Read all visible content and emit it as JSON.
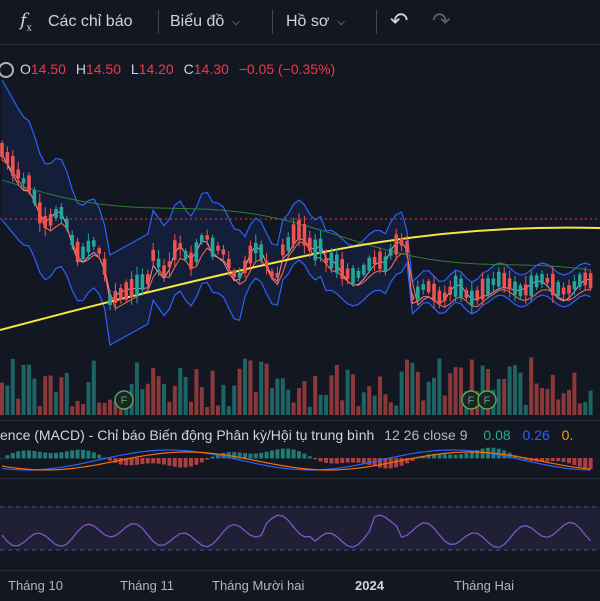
{
  "toolbar": {
    "indicators_label": "Các chỉ báo",
    "chart_label": "Biểu đồ",
    "profile_label": "Hồ sơ",
    "fx_glyph": "f",
    "fx_sub": "x",
    "undo_icon": "↶",
    "redo_icon": "↷",
    "chevron": "⌵"
  },
  "ohlc": {
    "o_label": "O",
    "o_value": "14.50",
    "h_label": "H",
    "h_value": "14.50",
    "l_label": "L",
    "l_value": "14.20",
    "c_label": "C",
    "c_value": "14.30",
    "change": "−0.05 (−0.35%)"
  },
  "macd": {
    "title": "ence (MACD) - Chỉ báo Biến động Phân kỳ/Hội tụ trung bình",
    "params": "12 26 close 9",
    "value1": "0.08",
    "value2": "0.26",
    "value3": "0."
  },
  "events": {
    "label": "F"
  },
  "time_axis": {
    "labels": [
      "Tháng 10",
      "Tháng 11",
      "Tháng Mười hai",
      "2024",
      "Tháng Hai"
    ]
  },
  "colors": {
    "background": "#131722",
    "up": "#26a69a",
    "down": "#ef5350",
    "ma_long": "#f5e642",
    "bollinger": "#2962ff",
    "rsi": "#7e57c2",
    "event_badge": "#4caf50"
  }
}
